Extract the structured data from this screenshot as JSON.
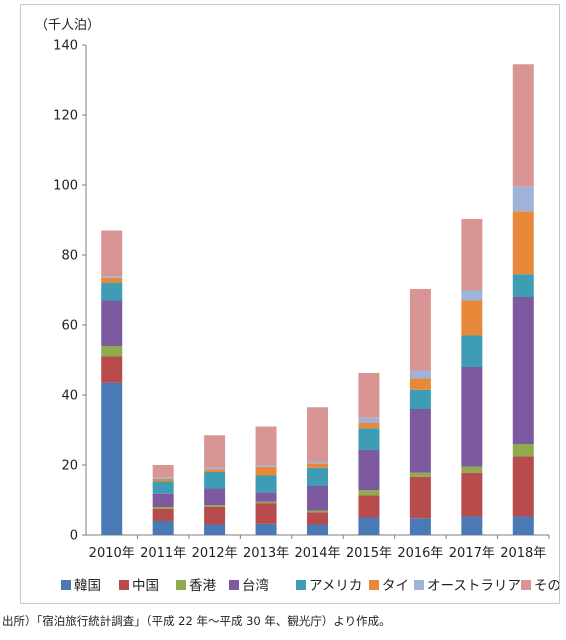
{
  "chart_data": {
    "type": "bar",
    "stacked": true,
    "y_unit_label": "（千人泊）",
    "ylim": [
      0,
      140
    ],
    "yticks": [
      0,
      20,
      40,
      60,
      80,
      100,
      120,
      140
    ],
    "grid": false,
    "legend_position": "bottom",
    "categories": [
      "2010年",
      "2011年",
      "2012年",
      "2013年",
      "2014年",
      "2015年",
      "2016年",
      "2017年",
      "2018年"
    ],
    "series": [
      {
        "name": "韓国",
        "color": "#4a7ab5",
        "values": [
          43.5,
          4.0,
          3.0,
          3.2,
          3.0,
          5.0,
          4.8,
          5.3,
          5.3
        ]
      },
      {
        "name": "中国",
        "color": "#b84b4b",
        "values": [
          7.5,
          3.5,
          5.0,
          5.8,
          3.5,
          6.3,
          11.8,
          12.5,
          17.2
        ]
      },
      {
        "name": "香港",
        "color": "#8fab4e",
        "values": [
          3.0,
          0.5,
          0.5,
          0.5,
          0.5,
          1.5,
          1.2,
          1.7,
          3.5
        ]
      },
      {
        "name": "台湾",
        "color": "#7d5aa0",
        "values": [
          13.0,
          3.8,
          4.8,
          2.7,
          7.0,
          11.5,
          18.2,
          28.5,
          42.0
        ]
      },
      {
        "name": "アメリカ",
        "color": "#3f9cb5",
        "values": [
          5.0,
          3.5,
          4.7,
          4.8,
          5.2,
          6.2,
          5.5,
          9.0,
          6.5
        ]
      },
      {
        "name": "タイ",
        "color": "#e8893a",
        "values": [
          1.5,
          0.7,
          0.8,
          2.5,
          1.3,
          1.5,
          3.2,
          10.0,
          18.0
        ]
      },
      {
        "name": "オーストラリア",
        "color": "#9fb3d9",
        "values": [
          0.5,
          0.5,
          0.5,
          0.5,
          0.5,
          1.5,
          2.3,
          3.0,
          7.0
        ]
      },
      {
        "name": "その他",
        "color": "#d99594",
        "values": [
          13.0,
          3.5,
          9.2,
          11.0,
          15.5,
          12.8,
          23.3,
          20.3,
          35.0
        ]
      }
    ]
  },
  "source_note": "出所）「宿泊旅行統計調査」（平成 22 年～平成 30 年、観光庁）より作成。"
}
